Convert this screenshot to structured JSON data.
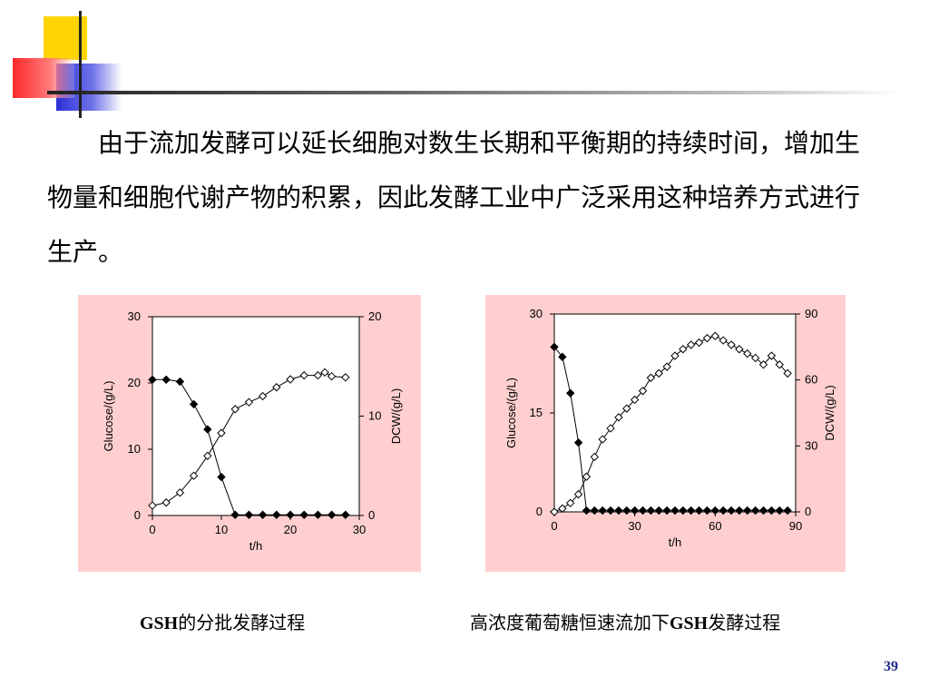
{
  "slide": {
    "paragraph": "　　由于流加发酵可以延长细胞对数生长期和平衡期的持续时间，增加生物量和细胞代谢产物的积累，因此发酵工业中广泛采用这种培养方式进行生产。",
    "caption_left": {
      "en": "GSH",
      "zh": "的分批发酵过程"
    },
    "caption_right": {
      "zh1": "高浓度葡萄糖恒速流加下",
      "en": "GSH",
      "zh2": "发酵过程"
    },
    "page_number": "39"
  },
  "colors": {
    "panel_bg": "#ffcfcf",
    "accent_yellow": "#ffd400",
    "accent_red": "#ff2a2a",
    "accent_blue": "#2b2fd6",
    "page_number": "#1d2a8c"
  },
  "chart_data": [
    {
      "type": "line",
      "xlabel": "t/h",
      "ylabel_left": "Glucose/(g/L)",
      "ylabel_right": "DCW/(g/L)",
      "xlim": [
        0,
        30
      ],
      "ylim_left": [
        0,
        30
      ],
      "ylim_right": [
        0,
        20
      ],
      "x_ticks": [
        "0",
        "10",
        "20",
        "30"
      ],
      "y_left_ticks": [
        "0",
        "10",
        "20",
        "30"
      ],
      "y_right_ticks": [
        "0",
        "10",
        "20"
      ],
      "grid": false,
      "series": [
        {
          "axis": "left",
          "marker": "filled-diamond",
          "points": [
            [
              0,
              20.5
            ],
            [
              2,
              20.5
            ],
            [
              4,
              20.2
            ],
            [
              6,
              16.8
            ],
            [
              8,
              13
            ],
            [
              10,
              5.8
            ],
            [
              12,
              0.1
            ],
            [
              14,
              0.1
            ],
            [
              16,
              0.1
            ],
            [
              18,
              0.1
            ],
            [
              20,
              0.1
            ],
            [
              22,
              0.1
            ],
            [
              24,
              0.1
            ],
            [
              26,
              0.1
            ],
            [
              28,
              0.1
            ]
          ]
        },
        {
          "axis": "right",
          "marker": "open-diamond",
          "points": [
            [
              0,
              1
            ],
            [
              2,
              1.3
            ],
            [
              4,
              2.3
            ],
            [
              6,
              4
            ],
            [
              8,
              6
            ],
            [
              10,
              8.3
            ],
            [
              12,
              10.7
            ],
            [
              14,
              11.4
            ],
            [
              16,
              12
            ],
            [
              18,
              12.9
            ],
            [
              20,
              13.7
            ],
            [
              22,
              14.1
            ],
            [
              24,
              14.1
            ],
            [
              25,
              14.4
            ],
            [
              26,
              14
            ],
            [
              28,
              13.9
            ]
          ]
        }
      ]
    },
    {
      "type": "line",
      "xlabel": "t/h",
      "ylabel_left": "Glucose/(g/L)",
      "ylabel_right": "DCW/(g/L)",
      "xlim": [
        0,
        90
      ],
      "ylim_left": [
        0,
        30
      ],
      "ylim_right": [
        0,
        90
      ],
      "x_ticks": [
        "0",
        "30",
        "60",
        "90"
      ],
      "y_left_ticks": [
        "0",
        "15",
        "30"
      ],
      "y_right_ticks": [
        "0",
        "30",
        "60",
        "90"
      ],
      "grid": false,
      "series": [
        {
          "axis": "left",
          "marker": "filled-diamond",
          "points": [
            [
              0,
              25
            ],
            [
              3,
              23.5
            ],
            [
              6,
              18
            ],
            [
              9,
              10.5
            ],
            [
              12,
              0.2
            ],
            [
              15,
              0.2
            ],
            [
              18,
              0.2
            ],
            [
              21,
              0.2
            ],
            [
              24,
              0.2
            ],
            [
              27,
              0.2
            ],
            [
              30,
              0.2
            ],
            [
              33,
              0.2
            ],
            [
              36,
              0.2
            ],
            [
              39,
              0.2
            ],
            [
              42,
              0.2
            ],
            [
              45,
              0.2
            ],
            [
              48,
              0.2
            ],
            [
              51,
              0.2
            ],
            [
              54,
              0.2
            ],
            [
              57,
              0.2
            ],
            [
              60,
              0.2
            ],
            [
              63,
              0.2
            ],
            [
              66,
              0.2
            ],
            [
              69,
              0.2
            ],
            [
              72,
              0.2
            ],
            [
              75,
              0.2
            ],
            [
              78,
              0.2
            ],
            [
              81,
              0.2
            ],
            [
              84,
              0.2
            ],
            [
              87,
              0.2
            ]
          ]
        },
        {
          "axis": "right",
          "marker": "open-diamond",
          "points": [
            [
              0,
              0
            ],
            [
              3,
              1.5
            ],
            [
              6,
              4
            ],
            [
              9,
              8
            ],
            [
              12,
              16
            ],
            [
              15,
              25
            ],
            [
              18,
              33
            ],
            [
              21,
              38
            ],
            [
              24,
              43
            ],
            [
              27,
              47
            ],
            [
              30,
              51
            ],
            [
              33,
              55
            ],
            [
              36,
              61
            ],
            [
              39,
              63
            ],
            [
              42,
              66
            ],
            [
              45,
              71
            ],
            [
              48,
              74
            ],
            [
              51,
              76
            ],
            [
              54,
              77
            ],
            [
              57,
              79
            ],
            [
              60,
              80
            ],
            [
              63,
              78
            ],
            [
              66,
              76
            ],
            [
              69,
              74
            ],
            [
              72,
              72
            ],
            [
              75,
              70
            ],
            [
              78,
              67
            ],
            [
              81,
              71
            ],
            [
              84,
              67
            ],
            [
              87,
              63
            ]
          ]
        }
      ]
    }
  ]
}
